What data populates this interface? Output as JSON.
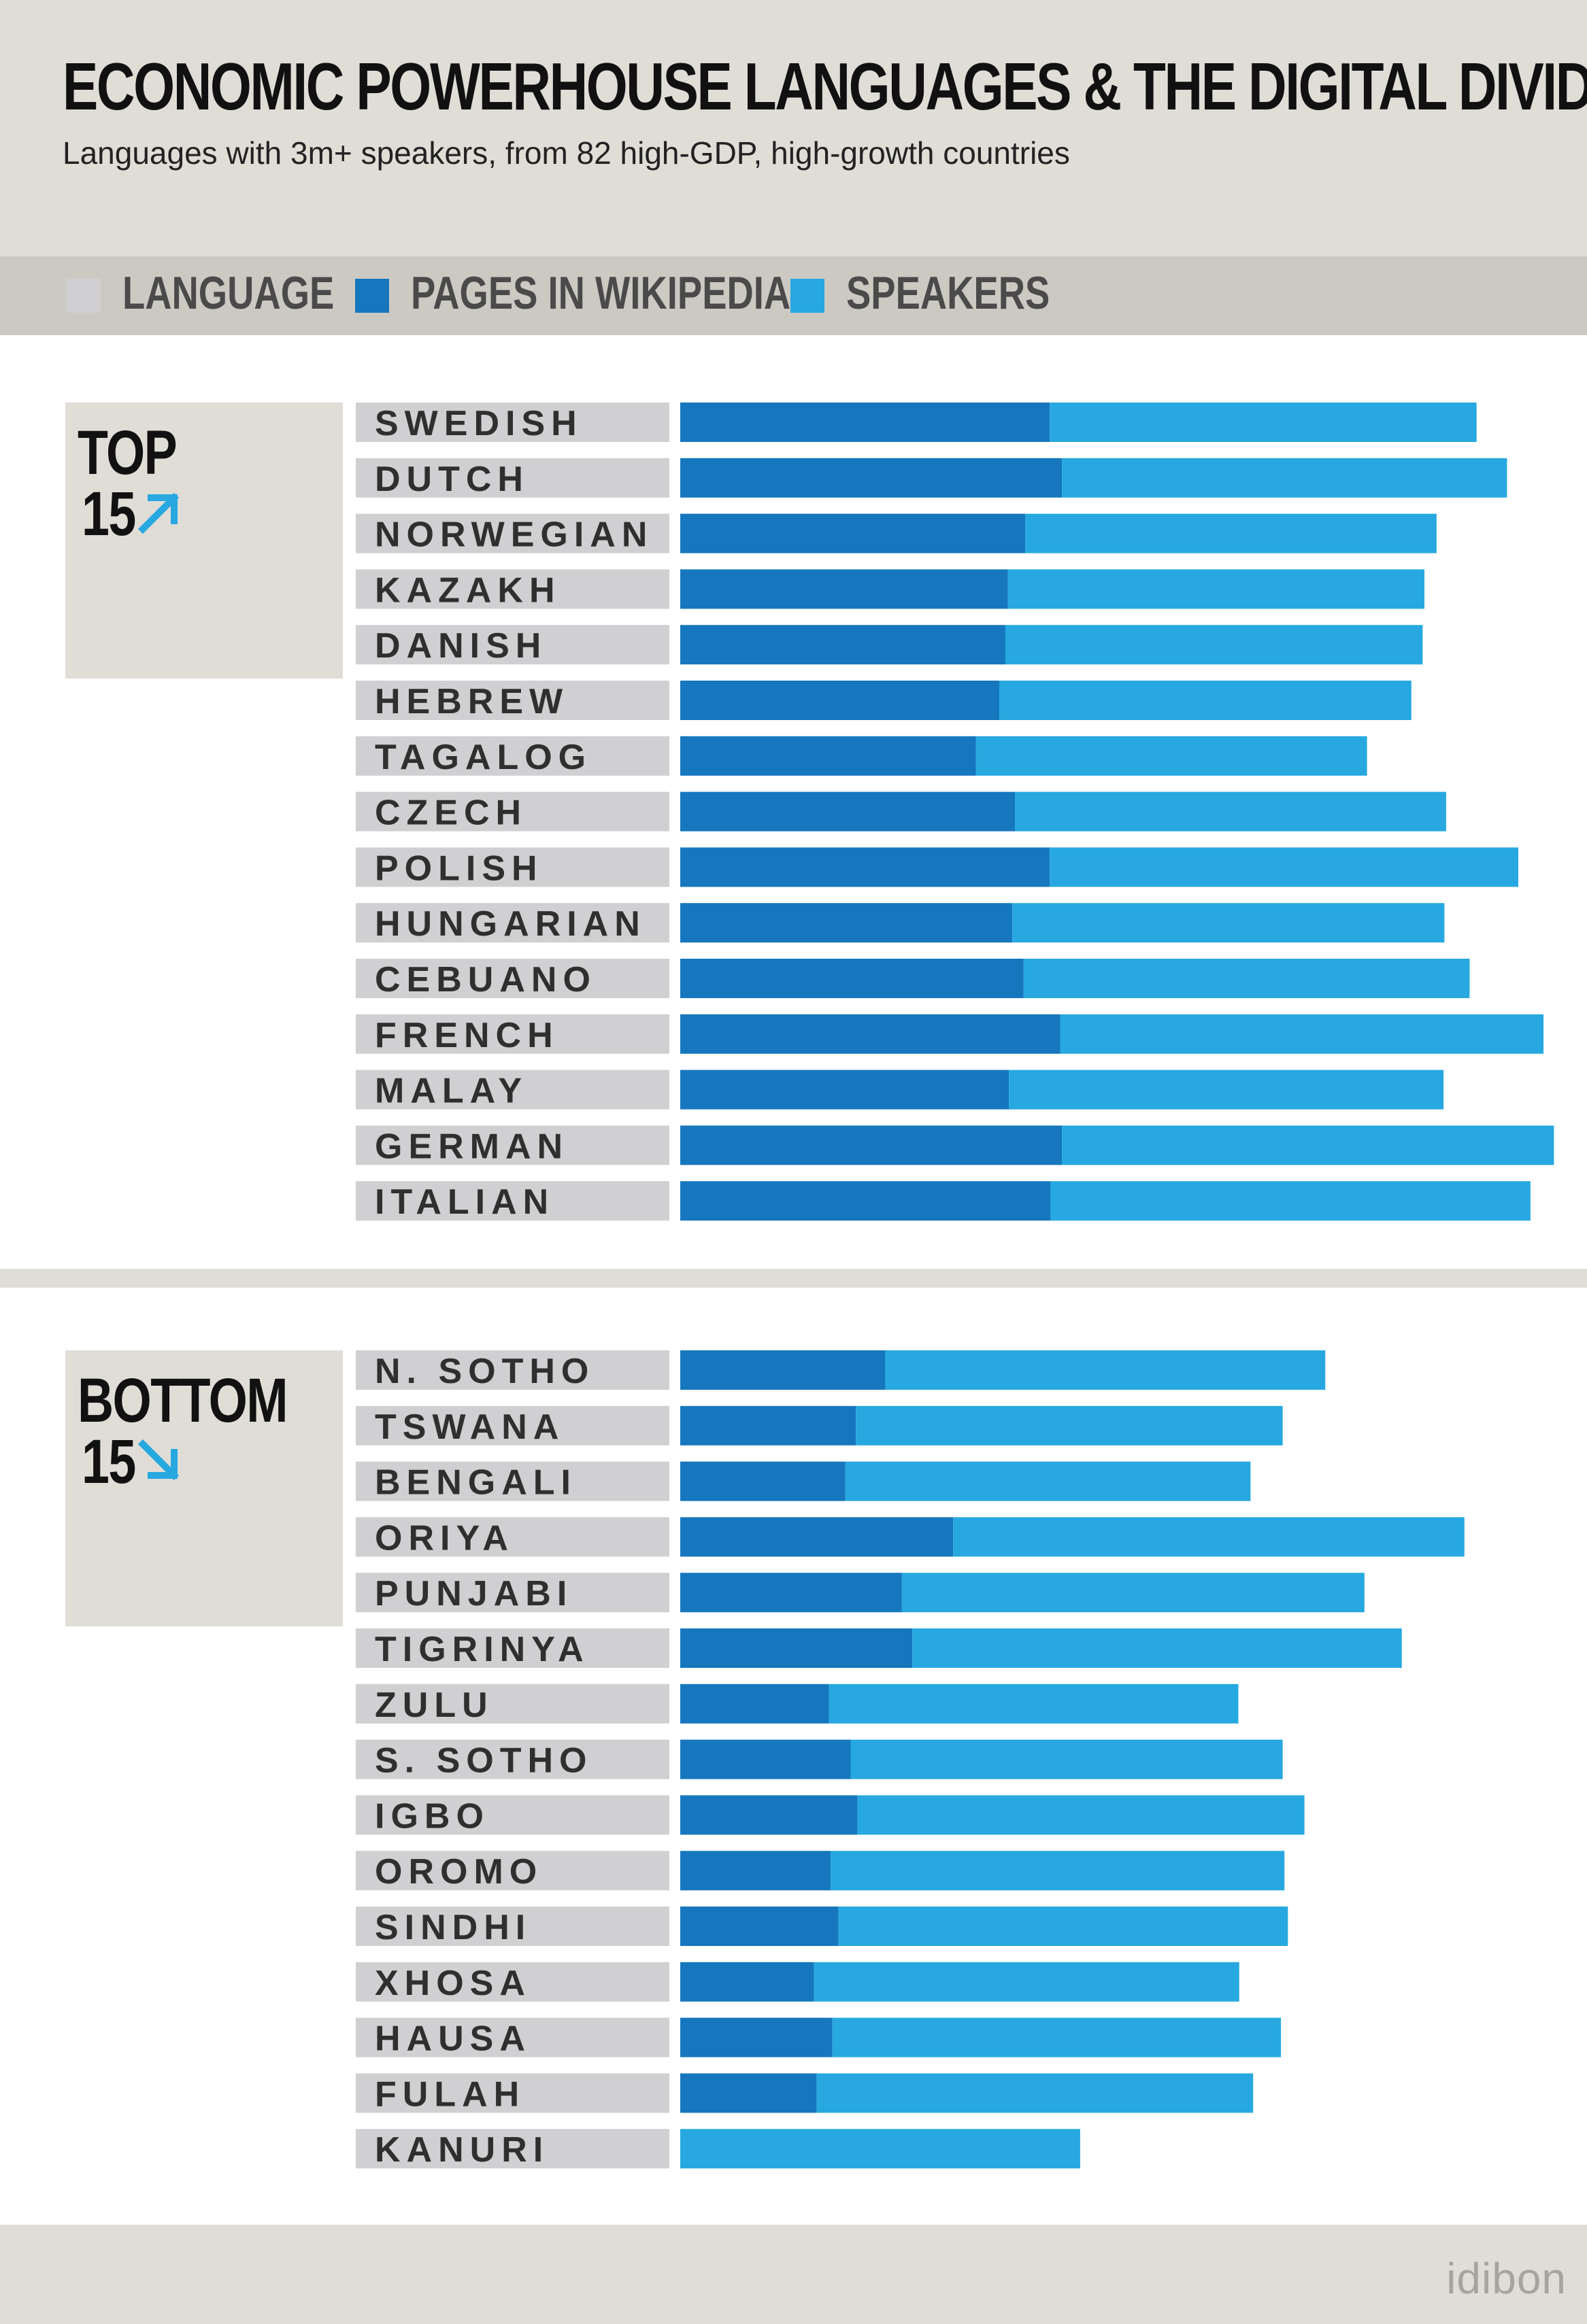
{
  "title": "ECONOMIC POWERHOUSE LANGUAGES & THE DIGITAL DIVIDE",
  "subtitle": "Languages with 3m+ speakers, from 82 high-GDP, high-growth countries",
  "legend": [
    {
      "label": "LANGUAGE",
      "color": "#d0d0d2"
    },
    {
      "label": "PAGES IN WIKIPEDIA",
      "color": "#1677be"
    },
    {
      "label": "SPEAKERS",
      "color": "#27a8e0"
    }
  ],
  "sections": [
    {
      "word": "TOP",
      "number": "15",
      "arrow": "up-right-arrow-icon"
    },
    {
      "word": "BOTTOM",
      "number": "15",
      "arrow": "down-right-arrow-icon"
    }
  ],
  "colors": {
    "language_bar": "#d0d0d2",
    "pages": "#1677be",
    "speakers": "#27a8e0",
    "panel": "#e0ddd7",
    "legend_band": "#ccc9c3"
  },
  "brand": "idibon",
  "chart_data": [
    {
      "type": "bar",
      "orientation": "horizontal",
      "stacked": true,
      "section": "TOP 15",
      "categories": [
        "SWEDISH",
        "DUTCH",
        "NORWEGIAN",
        "KAZAKH",
        "DANISH",
        "HEBREW",
        "TAGALOG",
        "CZECH",
        "POLISH",
        "HUNGARIAN",
        "CEBUANO",
        "FRENCH",
        "MALAY",
        "GERMAN",
        "ITALIAN"
      ],
      "series": [
        {
          "name": "PAGES IN WIKIPEDIA",
          "values": [
            0.425,
            0.439,
            0.397,
            0.377,
            0.374,
            0.367,
            0.34,
            0.385,
            0.425,
            0.382,
            0.395,
            0.437,
            0.378,
            0.439,
            0.426
          ]
        },
        {
          "name": "SPEAKERS",
          "values": [
            0.491,
            0.512,
            0.473,
            0.479,
            0.48,
            0.474,
            0.45,
            0.496,
            0.539,
            0.497,
            0.513,
            0.556,
            0.5,
            0.566,
            0.552
          ]
        }
      ],
      "xlim": [
        0,
        1
      ]
    },
    {
      "type": "bar",
      "orientation": "horizontal",
      "stacked": true,
      "section": "BOTTOM 15",
      "categories": [
        "N. SOTHO",
        "TSWANA",
        "BENGALI",
        "ORIYA",
        "PUNJABI",
        "TIGRINYA",
        "ZULU",
        "S. SOTHO",
        "IGBO",
        "OROMO",
        "SINDHI",
        "XHOSA",
        "HAUSA",
        "FULAH",
        "KANURI"
      ],
      "series": [
        {
          "name": "PAGES IN WIKIPEDIA",
          "values": [
            0.236,
            0.202,
            0.19,
            0.314,
            0.255,
            0.267,
            0.171,
            0.196,
            0.204,
            0.173,
            0.182,
            0.154,
            0.175,
            0.157,
            0.0
          ]
        },
        {
          "name": "SPEAKERS",
          "values": [
            0.506,
            0.491,
            0.466,
            0.588,
            0.532,
            0.563,
            0.471,
            0.497,
            0.514,
            0.522,
            0.517,
            0.489,
            0.516,
            0.502,
            0.46
          ]
        }
      ],
      "xlim": [
        0,
        1
      ]
    }
  ]
}
